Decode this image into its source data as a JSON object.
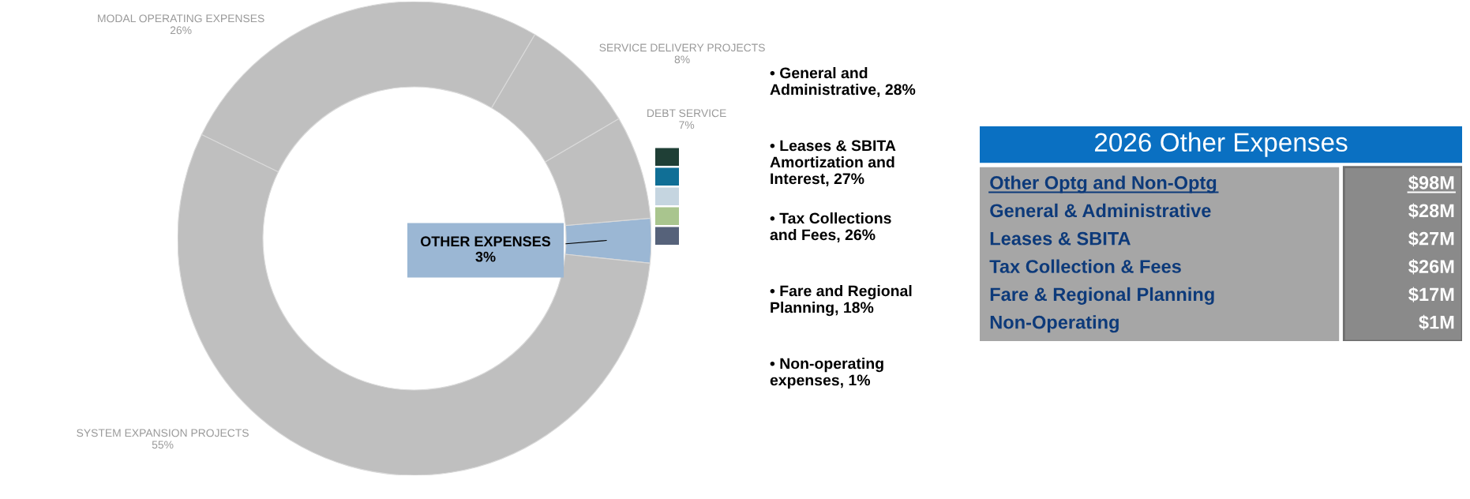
{
  "chart_data": [
    {
      "type": "donut",
      "categories": [
        "OTHER EXPENSES",
        "DEBT SERVICE",
        "SERVICE DELIVERY PROJECTS",
        "MODAL OPERATING EXPENSES",
        "SYSTEM EXPANSION PROJECTS"
      ],
      "values": [
        3,
        7,
        8,
        26,
        55
      ],
      "value_labels": [
        "3%",
        "7%",
        "8%",
        "26%",
        "55%"
      ],
      "colors": [
        "#9bb7d4",
        "#bfbfbf",
        "#bfbfbf",
        "#bfbfbf",
        "#bfbfbf"
      ]
    },
    {
      "type": "other",
      "annotations": [
        "• General and\nAdministrative, 28%",
        "• Leases & SBITA\nAmortization and\nInterest, 27%",
        "• Tax Collections\nand Fees, 26%",
        "• Fare and Regional\nPlanning, 18%",
        "• Non-operating\nexpenses, 1%"
      ],
      "colors": [
        "#1f3f36",
        "#106f96",
        "#c5d5e0",
        "#a9c58e",
        "#56627a"
      ]
    },
    {
      "type": "other",
      "title": "2026 Other Expenses",
      "categories": [
        "Other Optg and Non-Optg",
        "General & Administrative",
        "Leases & SBITA",
        "Tax Collection & Fees",
        "Fare & Regional Planning",
        "Non-Operating"
      ],
      "value_labels": [
        "$98M",
        "$28M",
        "$27M",
        "$26M",
        "$17M",
        "$1M"
      ]
    }
  ]
}
